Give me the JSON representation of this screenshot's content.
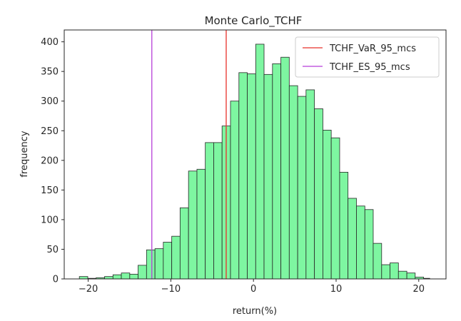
{
  "chart_data": {
    "type": "histogram",
    "title": "Monte Carlo_TCHF",
    "xlabel": "return(%)",
    "ylabel": "frequency",
    "xlim": [
      -22.9,
      23.3
    ],
    "ylim": [
      0,
      420
    ],
    "xticks": [
      -20,
      -10,
      0,
      10,
      20
    ],
    "yticks": [
      0,
      50,
      100,
      150,
      200,
      250,
      300,
      350,
      400
    ],
    "grid": false,
    "legend_position": "top-right",
    "bin_edges": [
      -21.07,
      -20.05,
      -19.04,
      -18.02,
      -17.0,
      -15.99,
      -14.97,
      -13.96,
      -12.94,
      -11.92,
      -10.91,
      -9.89,
      -8.88,
      -7.86,
      -6.84,
      -5.83,
      -4.81,
      -3.8,
      -2.78,
      -1.76,
      -0.75,
      0.27,
      1.28,
      2.3,
      3.32,
      4.33,
      5.35,
      6.36,
      7.38,
      8.4,
      9.41,
      10.43,
      11.44,
      12.46,
      13.48,
      14.49,
      15.51,
      16.52,
      17.54,
      18.56,
      19.57,
      20.59,
      21.33
    ],
    "counts": [
      4,
      1,
      2,
      4,
      7,
      10,
      8,
      23,
      49,
      51,
      62,
      72,
      120,
      182,
      185,
      230,
      230,
      258,
      300,
      348,
      346,
      396,
      345,
      363,
      374,
      326,
      308,
      319,
      287,
      251,
      238,
      180,
      136,
      123,
      117,
      60,
      24,
      27,
      13,
      10,
      3,
      1
    ],
    "bar_color": "#7ef6a1",
    "bar_edge_color": "#262626",
    "vlines": [
      {
        "name": "TCHF_VaR_95_mcs",
        "x": -3.3,
        "color": "#e8312a"
      },
      {
        "name": "TCHF_ES_95_mcs",
        "x": -12.3,
        "color": "#b73fd9"
      }
    ]
  }
}
